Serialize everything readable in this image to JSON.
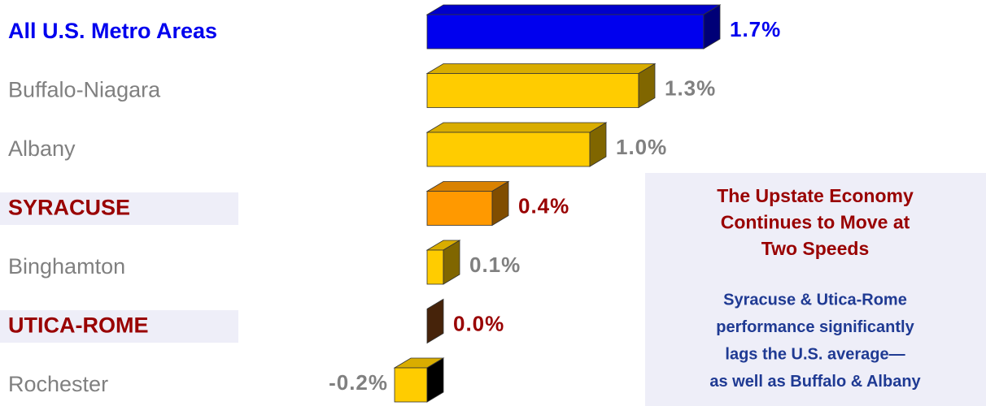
{
  "chart_data": {
    "type": "bar3d",
    "categories": [
      "All U.S. Metro Areas",
      "Buffalo-Niagara",
      "Albany",
      "SYRACUSE",
      "Binghamton",
      "UTICA-ROME",
      "Rochester"
    ],
    "values": [
      1.7,
      1.3,
      1.0,
      0.4,
      0.1,
      0.0,
      -0.2
    ],
    "value_labels": [
      "1.7%",
      "1.3%",
      "1.0%",
      "0.4%",
      "0.1%",
      "0.0%",
      "-0.2%"
    ],
    "colors": [
      "#0000ee",
      "#ffcc00",
      "#ffcc00",
      "#ff9900",
      "#ffcc00",
      "#8b4513",
      "#ffcc00"
    ],
    "label_colors": [
      "#0000ee",
      "#808080",
      "#808080",
      "#990000",
      "#808080",
      "#990000",
      "#808080"
    ],
    "annotation": {
      "title": [
        "The Upstate Economy",
        "Continues to Move at",
        "Two Speeds"
      ],
      "body": [
        "Syracuse & Utica-Rome",
        "performance significantly",
        "lags the U.S. average—",
        "as well as Buffalo & Albany"
      ]
    }
  }
}
